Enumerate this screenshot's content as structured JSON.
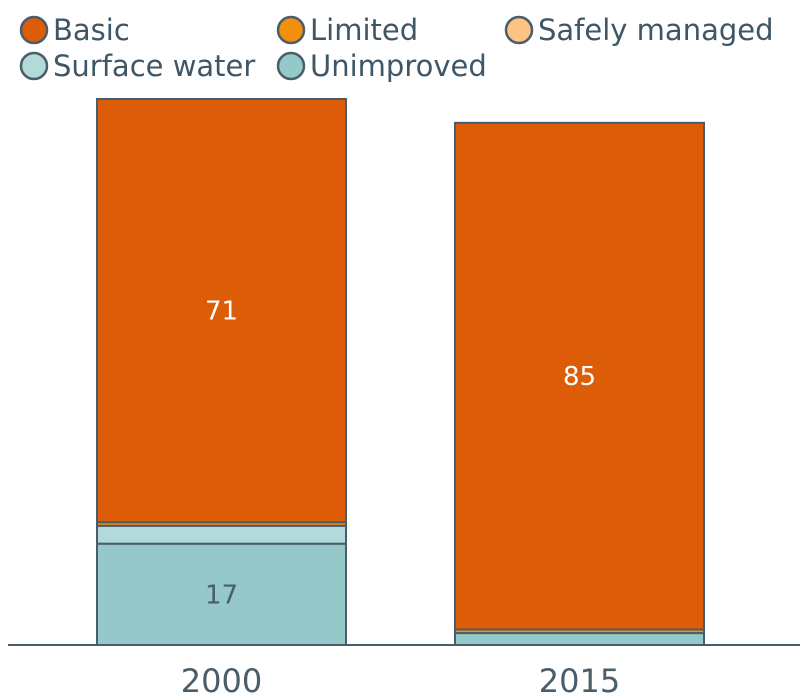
{
  "chart_data": {
    "type": "bar",
    "stacked": true,
    "categories": [
      "2000",
      "2015"
    ],
    "series": [
      {
        "name": "Unimproved",
        "values": [
          17,
          2
        ],
        "color": "#95c8c8",
        "labels": [
          "17",
          ""
        ]
      },
      {
        "name": "Surface water",
        "values": [
          3,
          0
        ],
        "color": "#b2dada",
        "labels": [
          "",
          ""
        ]
      },
      {
        "name": "Safely managed",
        "values": [
          0,
          0
        ],
        "color": "#fdc382",
        "labels": [
          "",
          ""
        ]
      },
      {
        "name": "Limited",
        "values": [
          0.6,
          0.6
        ],
        "color": "#f2900c",
        "labels": [
          "",
          ""
        ]
      },
      {
        "name": "Basic",
        "values": [
          71,
          85
        ],
        "color": "#dd5c08",
        "labels": [
          "71",
          "85"
        ]
      }
    ],
    "legend_order": [
      "Basic",
      "Limited",
      "Safely managed",
      "Surface water",
      "Unimproved"
    ],
    "legend_position": "top",
    "grid": false,
    "ylim": [
      0,
      91.6
    ]
  }
}
